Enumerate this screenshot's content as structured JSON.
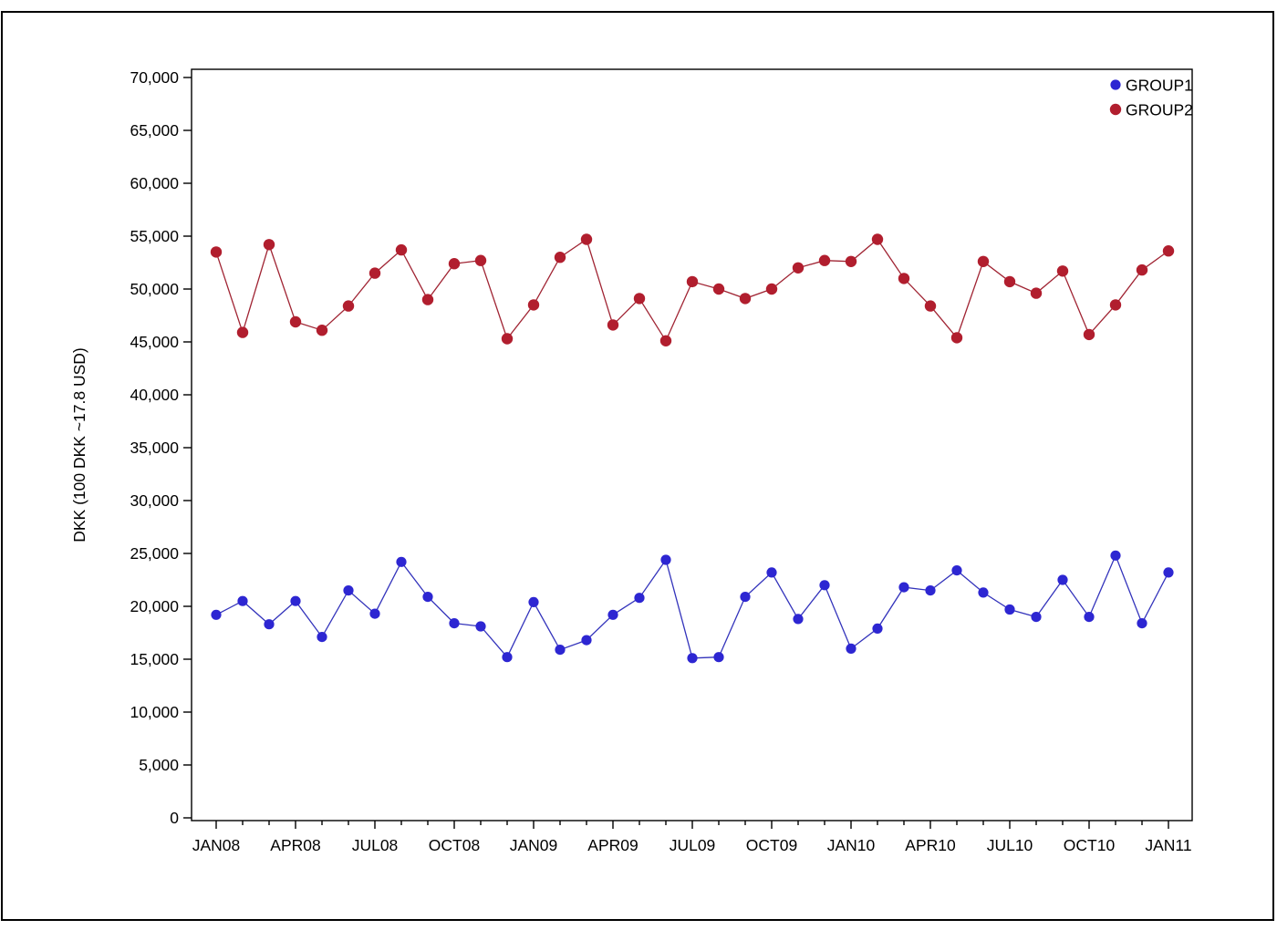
{
  "page": {
    "background": "#ffffff",
    "border_color": "#000000"
  },
  "chart_data": {
    "type": "line",
    "title": "",
    "xlabel": "",
    "ylabel": "DKK (100 DKK ~17.8 USD)",
    "ylim": [
      0,
      70000
    ],
    "ytick_step": 5000,
    "grid": false,
    "legend_position": "top-right-inside",
    "categories": [
      "JAN08",
      "FEB08",
      "MAR08",
      "APR08",
      "MAY08",
      "JUN08",
      "JUL08",
      "AUG08",
      "SEP08",
      "OCT08",
      "NOV08",
      "DEC08",
      "JAN09",
      "FEB09",
      "MAR09",
      "APR09",
      "MAY09",
      "JUN09",
      "JUL09",
      "AUG09",
      "SEP09",
      "OCT09",
      "NOV09",
      "DEC09",
      "JAN10",
      "FEB10",
      "MAR10",
      "APR10",
      "MAY10",
      "JUN10",
      "JUL10",
      "AUG10",
      "SEP10",
      "OCT10",
      "NOV10",
      "DEC10",
      "JAN11"
    ],
    "x_tick_labels": [
      "JAN08",
      "APR08",
      "JUL08",
      "OCT08",
      "JAN09",
      "APR09",
      "JUL09",
      "OCT09",
      "JAN10",
      "APR10",
      "JUL10",
      "OCT10",
      "JAN11"
    ],
    "series": [
      {
        "name": "GROUP1",
        "marker_color": "#2D26D2",
        "line_color": "#3333BB",
        "values": [
          19200,
          20500,
          18300,
          20500,
          17100,
          21500,
          19300,
          24200,
          20900,
          18400,
          18100,
          15200,
          20400,
          15900,
          16800,
          19200,
          20800,
          24400,
          15100,
          15200,
          20900,
          23200,
          18800,
          22000,
          16000,
          17900,
          21800,
          21500,
          23400,
          21300,
          19700,
          19000,
          22500,
          19000,
          24800,
          18400,
          23200
        ]
      },
      {
        "name": "GROUP2",
        "marker_color": "#B11E2E",
        "line_color": "#A02433",
        "values": [
          53500,
          45900,
          54200,
          46900,
          46100,
          48400,
          51500,
          53700,
          49000,
          52400,
          52700,
          45300,
          48500,
          53000,
          54700,
          46600,
          49100,
          45100,
          50700,
          50000,
          49100,
          50000,
          52000,
          52700,
          52600,
          54700,
          51000,
          48400,
          45400,
          52600,
          50700,
          49600,
          51700,
          45700,
          48500,
          51800,
          53600
        ]
      }
    ]
  }
}
